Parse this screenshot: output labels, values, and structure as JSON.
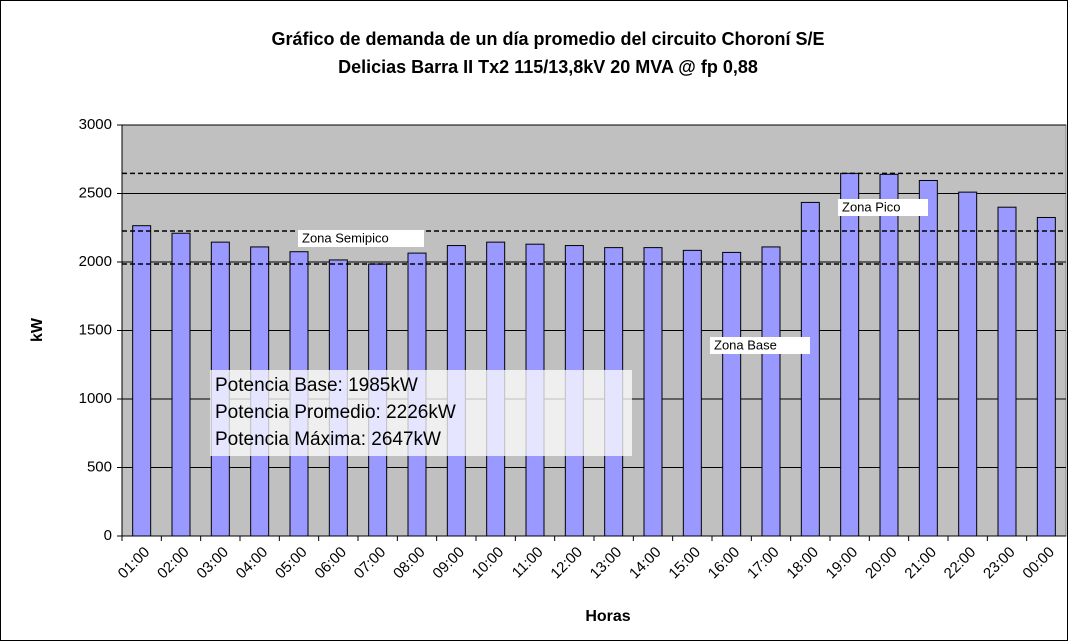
{
  "chart_data": {
    "type": "bar",
    "title": [
      "Gráfico de demanda de un día promedio del circuito Choroní S/E",
      "Delicias Barra II Tx2 115/13,8kV 20 MVA @ fp 0,88"
    ],
    "xlabel": "Horas",
    "ylabel": "kW",
    "categories": [
      "01:00",
      "02:00",
      "03:00",
      "04:00",
      "05:00",
      "06:00",
      "07:00",
      "08:00",
      "09:00",
      "10:00",
      "11:00",
      "12:00",
      "13:00",
      "14:00",
      "15:00",
      "16:00",
      "17:00",
      "18:00",
      "19:00",
      "20:00",
      "21:00",
      "22:00",
      "23:00",
      "00:00"
    ],
    "values": [
      2265,
      2210,
      2145,
      2110,
      2075,
      2015,
      1985,
      2065,
      2120,
      2145,
      2130,
      2120,
      2105,
      2105,
      2085,
      2070,
      2110,
      2435,
      2647,
      2640,
      2595,
      2510,
      2400,
      2325
    ],
    "color": "#9999ff",
    "ylim": [
      0,
      3000
    ],
    "yticks": [
      0,
      500,
      1000,
      1500,
      2000,
      2500,
      3000
    ],
    "grid": true,
    "reference_lines": [
      1985,
      2226,
      2647
    ],
    "zones": [
      "Zona Semipico",
      "Zona Pico",
      "Zona Base"
    ],
    "info": [
      "Potencia Base: 1985kW",
      "Potencia Promedio: 2226kW",
      "Potencia Máxima: 2647kW"
    ]
  }
}
